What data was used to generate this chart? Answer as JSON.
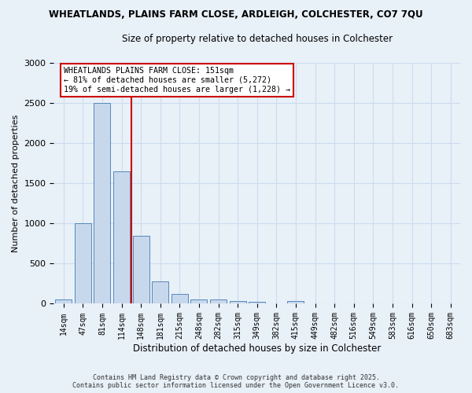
{
  "title1": "WHEATLANDS, PLAINS FARM CLOSE, ARDLEIGH, COLCHESTER, CO7 7QU",
  "title2": "Size of property relative to detached houses in Colchester",
  "xlabel": "Distribution of detached houses by size in Colchester",
  "ylabel": "Number of detached properties",
  "bins": [
    "14sqm",
    "47sqm",
    "81sqm",
    "114sqm",
    "148sqm",
    "181sqm",
    "215sqm",
    "248sqm",
    "282sqm",
    "315sqm",
    "349sqm",
    "382sqm",
    "415sqm",
    "449sqm",
    "482sqm",
    "516sqm",
    "549sqm",
    "583sqm",
    "616sqm",
    "650sqm",
    "683sqm"
  ],
  "values": [
    50,
    1000,
    2500,
    1650,
    850,
    275,
    125,
    55,
    55,
    35,
    20,
    0,
    30,
    0,
    0,
    0,
    0,
    0,
    0,
    0,
    0
  ],
  "bar_color": "#c8d8ec",
  "bar_edge_color": "#5588bb",
  "vline_x": 3.5,
  "annotation_title": "WHEATLANDS PLAINS FARM CLOSE: 151sqm",
  "annotation_line1": "← 81% of detached houses are smaller (5,272)",
  "annotation_line2": "19% of semi-detached houses are larger (1,228) →",
  "annotation_box_color": "#ffffff",
  "annotation_border_color": "#cc0000",
  "vline_color": "#cc0000",
  "ylim": [
    0,
    3000
  ],
  "yticks": [
    0,
    500,
    1000,
    1500,
    2000,
    2500,
    3000
  ],
  "grid_color": "#ccddee",
  "bg_color": "#e8f0f8",
  "footer1": "Contains HM Land Registry data © Crown copyright and database right 2025.",
  "footer2": "Contains public sector information licensed under the Open Government Licence v3.0."
}
